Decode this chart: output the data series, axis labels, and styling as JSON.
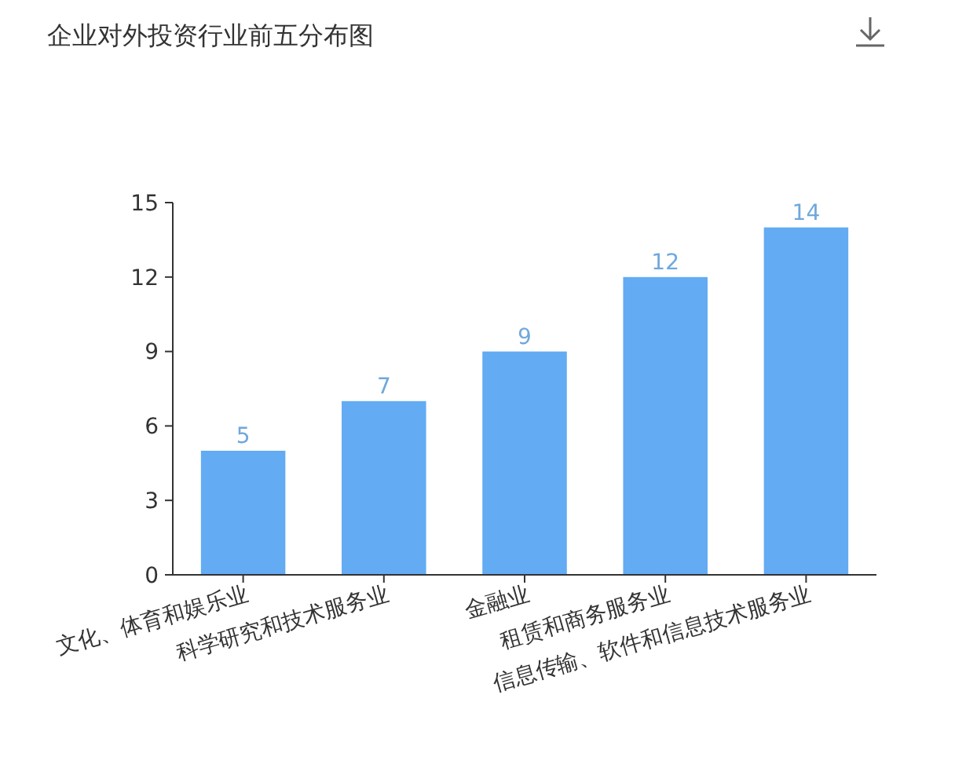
{
  "chart_data": {
    "type": "bar",
    "title": "企业对外投资行业前五分布图",
    "categories": [
      "文化、体育和娱乐业",
      "科学研究和技术服务业",
      "金融业",
      "租赁和商务服务业",
      "信息传输、软件和信息技术服务业"
    ],
    "values": [
      5,
      7,
      9,
      12,
      14
    ],
    "color": "#63abf3",
    "ylim": [
      0,
      15
    ],
    "yticks": [
      0,
      3,
      6,
      9,
      12,
      15
    ],
    "grid": false,
    "data_labels": true
  }
}
